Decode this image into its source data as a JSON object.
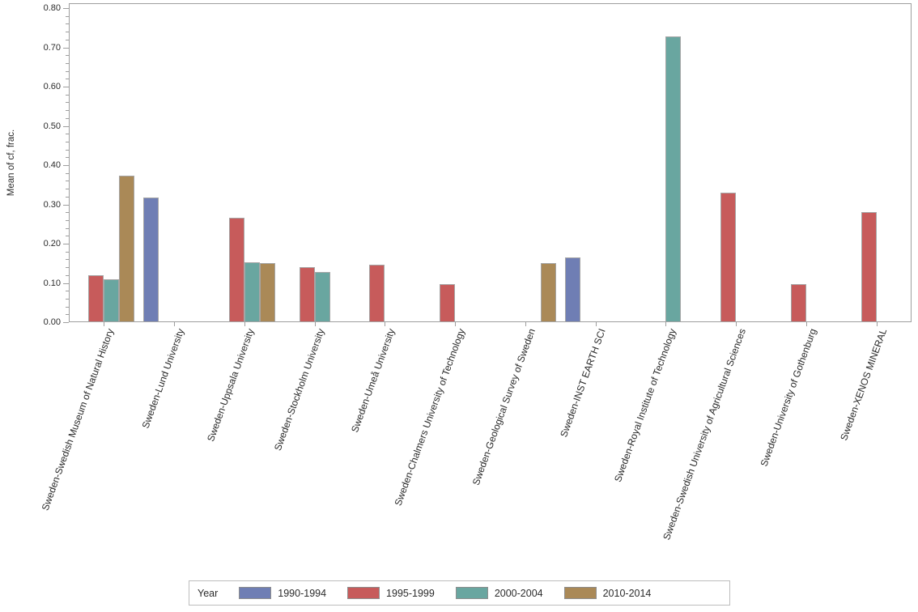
{
  "chart_data": {
    "type": "bar",
    "title": "",
    "xlabel": "",
    "ylabel": "Mean of cf, frac.",
    "ylim": [
      0,
      0.8
    ],
    "ytick_step": 0.1,
    "yminor_step": 0.02,
    "grid": false,
    "legend_title": "Year",
    "legend_position": "bottom",
    "axis_color": "#9e9e9e",
    "bar_border_color": "#a5a5a5",
    "categories": [
      "Sweden-Swedish Museum of Natural History",
      "Sweden-Lund University",
      "Sweden-Uppsala University",
      "Sweden-Stockholm University",
      "Sweden-Umeå University",
      "Sweden-Chalmers University of Technology",
      "Sweden-Geological Survey of Sweden",
      "Sweden-INST EARTH SCI",
      "Sweden-Royal Institute of Technology",
      "Sweden-Swedish University of Agricultural Sciences",
      "Sweden-University of Gothenburg",
      "Sweden-XENOS MINERAL"
    ],
    "series": [
      {
        "name": "1990-1994",
        "color": "#6F7EB4",
        "values": [
          null,
          0.317,
          null,
          null,
          null,
          null,
          null,
          0.165,
          null,
          null,
          null,
          null
        ]
      },
      {
        "name": "1995-1999",
        "color": "#C75B5B",
        "values": [
          0.12,
          null,
          0.267,
          0.14,
          0.146,
          0.097,
          null,
          null,
          null,
          0.33,
          0.097,
          0.28
        ]
      },
      {
        "name": "2000-2004",
        "color": "#69A6A0",
        "values": [
          0.11,
          null,
          0.152,
          0.128,
          null,
          null,
          null,
          null,
          0.727,
          null,
          null,
          null
        ]
      },
      {
        "name": "2010-2014",
        "color": "#AA8957",
        "values": [
          0.373,
          null,
          0.15,
          null,
          null,
          null,
          0.151,
          null,
          null,
          null,
          null,
          null
        ]
      }
    ]
  }
}
